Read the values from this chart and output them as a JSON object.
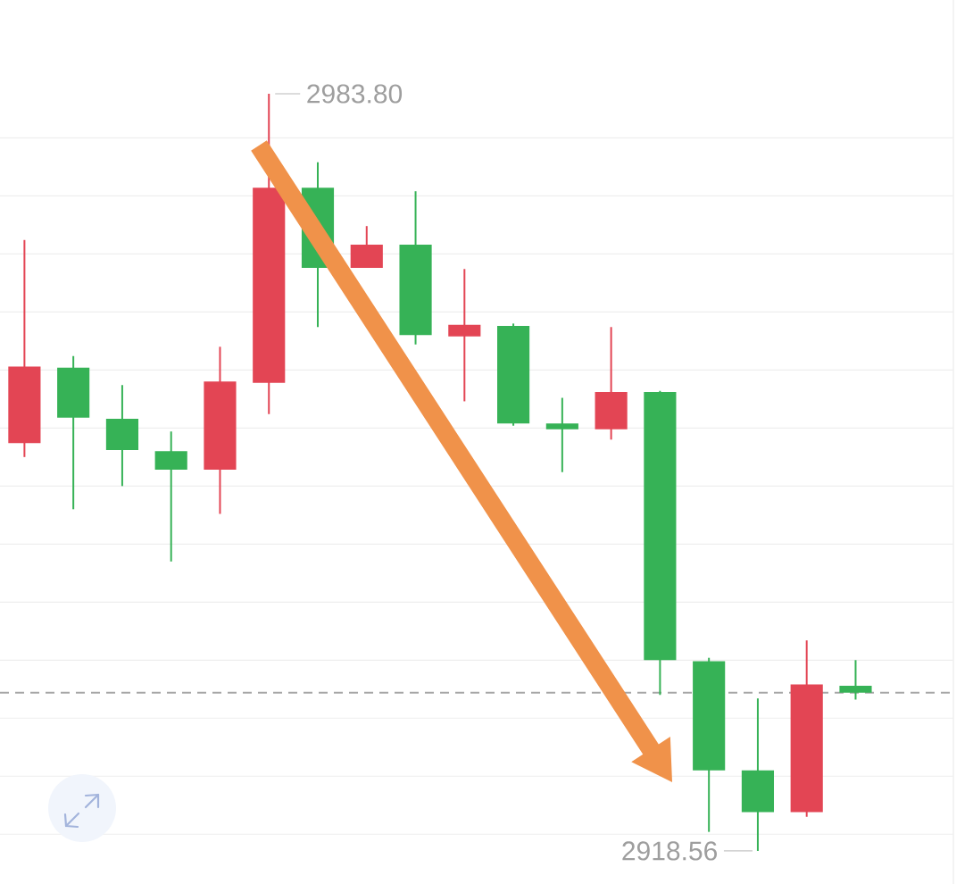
{
  "chart_data": {
    "type": "candlestick",
    "categories": [
      null,
      null,
      null,
      null,
      null,
      null,
      null,
      null,
      null,
      null,
      null,
      null,
      null,
      null,
      null,
      null,
      null,
      null
    ],
    "ohlc": [
      [
        2953.7,
        2971.2,
        2952.5,
        2960.3
      ],
      [
        2960.2,
        2961.2,
        2948.0,
        2955.9
      ],
      [
        2955.8,
        2958.7,
        2950.0,
        2953.1
      ],
      [
        2953.0,
        2954.7,
        2943.5,
        2951.4
      ],
      [
        2951.4,
        2962.0,
        2947.6,
        2959.0
      ],
      [
        2958.9,
        2983.8,
        2956.2,
        2975.7
      ],
      [
        2975.7,
        2977.9,
        2963.7,
        2968.8
      ],
      [
        2968.8,
        2972.4,
        2968.8,
        2970.8
      ],
      [
        2970.8,
        2975.4,
        2962.2,
        2963.0
      ],
      [
        2962.9,
        2968.7,
        2957.3,
        2963.9
      ],
      [
        2963.8,
        2964.0,
        2955.2,
        2955.4
      ],
      [
        2955.4,
        2957.6,
        2951.2,
        2954.9
      ],
      [
        2954.9,
        2963.7,
        2954.0,
        2958.1
      ],
      [
        2958.1,
        2958.2,
        2932.0,
        2935.0
      ],
      [
        2934.9,
        2935.2,
        2920.2,
        2925.5
      ],
      [
        2925.5,
        2931.7,
        2918.56,
        2921.9
      ],
      [
        2921.9,
        2936.7,
        2921.5,
        2932.9
      ],
      [
        2932.8,
        2935.0,
        2931.6,
        2932.2
      ]
    ],
    "colors": [
      "#e34554",
      "#36b256",
      "#36b256",
      "#36b256",
      "#e34554",
      "#e34554",
      "#36b256",
      "#e34554",
      "#36b256",
      "#e34554",
      "#36b256",
      "#36b256",
      "#e34554",
      "#36b256",
      "#36b256",
      "#36b256",
      "#e34554",
      "#36b256"
    ],
    "yticks": [
      {
        "value": 2920,
        "label": null
      },
      {
        "value": 2925,
        "label": null
      },
      {
        "value": 2930,
        "label": null
      },
      {
        "value": 2935,
        "label": null
      },
      {
        "value": 2940,
        "label": null
      },
      {
        "value": 2945,
        "label": null
      },
      {
        "value": 2950,
        "label": null
      },
      {
        "value": 2955,
        "label": null
      },
      {
        "value": 2960,
        "label": null
      },
      {
        "value": 2965,
        "label": null
      },
      {
        "value": 2970,
        "label": null
      },
      {
        "value": 2975,
        "label": null
      },
      {
        "value": 2980,
        "label": null
      }
    ],
    "grid": "y",
    "ref_lines": [
      {
        "axis": "y",
        "value": 2932.2,
        "line_style": "dashed",
        "color": "#a6a6a6"
      }
    ],
    "annotations": [
      "2983.80",
      "2918.56"
    ]
  }
}
